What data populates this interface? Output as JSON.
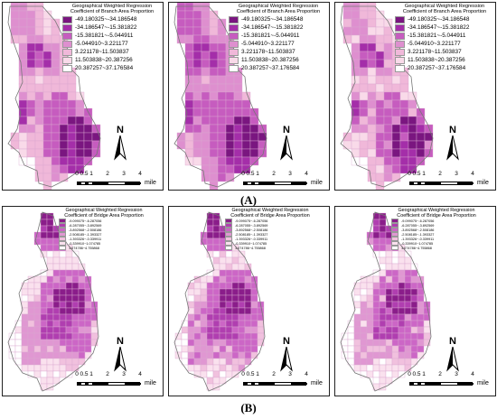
{
  "figure": {
    "row_a_label": "(A)",
    "row_b_label": "(B)"
  },
  "row_a": {
    "legend_title": "Geographical Weighted Regression Coefficient of Branch Area Proportion",
    "classes": [
      {
        "label": "-49.180325~-34.186548",
        "color": "#7a1680"
      },
      {
        "label": "-34.186547~-15.381822",
        "color": "#a42ea9"
      },
      {
        "label": "-15.381821~-5.044911",
        "color": "#c65cbf"
      },
      {
        "label": "-5.044910~3.221177",
        "color": "#de8fcf"
      },
      {
        "label": "3.221178~11.503837",
        "color": "#f0b8d9"
      },
      {
        "label": "11.503838~20.387256",
        "color": "#f9dae9"
      },
      {
        "label": "20.387257~37.176584",
        "color": "#ffffff"
      }
    ]
  },
  "row_b": {
    "legend_title": "Geographical Weighted Regression Coefficient of Bridge Area Proportion",
    "classes": [
      {
        "label": "-9.099075~-6.287056",
        "color": "#8a1d8a"
      },
      {
        "label": "-6.287055~-3.892569",
        "color": "#b03eb0"
      },
      {
        "label": "-3.892568~-2.508186",
        "color": "#cc66c6"
      },
      {
        "label": "-2.508185~-1.393327",
        "color": "#e097d2"
      },
      {
        "label": "-1.393326~-0.339911",
        "color": "#f1c1de"
      },
      {
        "label": "-0.339910~1.074785",
        "color": "#fae1ee"
      },
      {
        "label": "1.074786~4.755868",
        "color": "#ffffff"
      }
    ]
  },
  "north_arrow": {
    "letter": "N",
    "icon": "north-arrow-icon"
  },
  "scalebar": {
    "ticks": [
      "0",
      "0.5",
      "1",
      "2",
      "3",
      "4"
    ],
    "unit": "mile"
  }
}
